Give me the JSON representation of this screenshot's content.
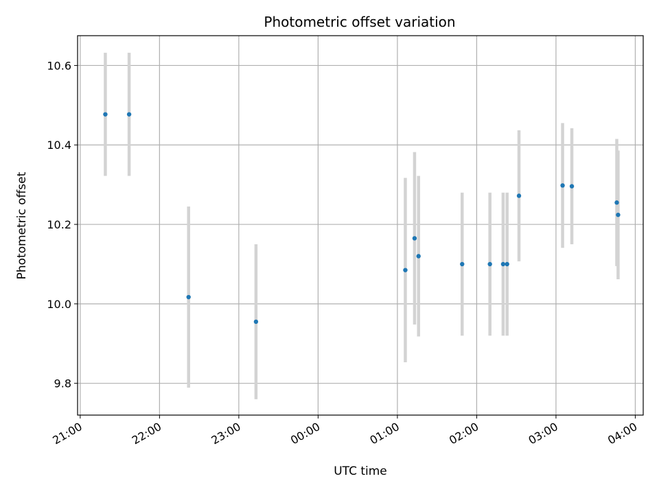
{
  "chart_data": {
    "type": "scatter",
    "title": "Photometric offset variation",
    "xlabel": "UTC time",
    "ylabel": "Photometric offset",
    "x_unit": "UTC time",
    "xlim": [
      "20:58",
      "04:06"
    ],
    "ylim": [
      9.72,
      10.675
    ],
    "x_ticks": [
      "21:00",
      "22:00",
      "23:00",
      "00:00",
      "01:00",
      "02:00",
      "03:00",
      "04:00"
    ],
    "y_ticks": [
      "9.8",
      "10.0",
      "10.2",
      "10.4",
      "10.6"
    ],
    "y_tick_values": [
      9.8,
      10.0,
      10.2,
      10.4,
      10.6
    ],
    "grid": true,
    "point_color": "#1f77b4",
    "errorbar_color": "#d3d3d3",
    "points": [
      {
        "x": "21:19",
        "y": 10.477,
        "yerr": 0.155
      },
      {
        "x": "21:37",
        "y": 10.477,
        "yerr": 0.155
      },
      {
        "x": "22:22",
        "y": 10.017,
        "yerr": 0.228
      },
      {
        "x": "23:13",
        "y": 9.955,
        "yerr": 0.195
      },
      {
        "x": "01:06",
        "y": 10.085,
        "yerr": 0.232
      },
      {
        "x": "01:13",
        "y": 10.165,
        "yerr": 0.217
      },
      {
        "x": "01:16",
        "y": 10.12,
        "yerr": 0.202
      },
      {
        "x": "01:49",
        "y": 10.1,
        "yerr": 0.18
      },
      {
        "x": "02:10",
        "y": 10.1,
        "yerr": 0.18
      },
      {
        "x": "02:20",
        "y": 10.1,
        "yerr": 0.18
      },
      {
        "x": "02:23",
        "y": 10.1,
        "yerr": 0.18
      },
      {
        "x": "02:32",
        "y": 10.272,
        "yerr": 0.165
      },
      {
        "x": "03:05",
        "y": 10.298,
        "yerr": 0.157
      },
      {
        "x": "03:12",
        "y": 10.296,
        "yerr": 0.146
      },
      {
        "x": "03:46",
        "y": 10.255,
        "yerr": 0.16
      },
      {
        "x": "03:47",
        "y": 10.224,
        "yerr": 0.162
      }
    ]
  }
}
